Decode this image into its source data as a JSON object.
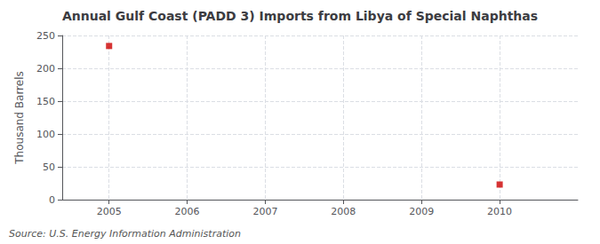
{
  "chart_data": {
    "type": "scatter",
    "title": "Annual Gulf Coast (PADD 3) Imports from Libya of Special Naphthas",
    "ylabel": "Thousand Barrels",
    "annotation": "Source: U.S. Energy Information Administration",
    "x": [
      2005,
      2010
    ],
    "values": [
      234,
      23
    ],
    "color": "#cc0000",
    "marker": "square",
    "xlim": [
      2004.4,
      2011.0
    ],
    "xticks": [
      2005,
      2006,
      2007,
      2008,
      2009,
      2010
    ],
    "ylim": [
      0,
      250
    ],
    "yticks": [
      0,
      50,
      100,
      150,
      200,
      250
    ],
    "grid": true
  }
}
